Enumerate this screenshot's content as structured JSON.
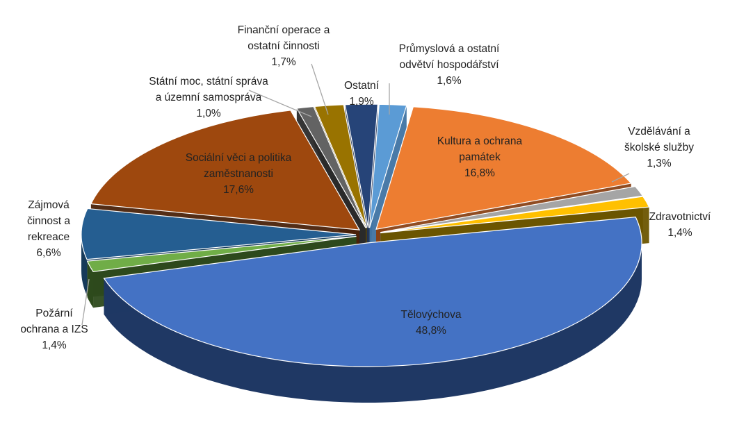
{
  "chart_data": {
    "type": "pie",
    "style": "3d-exploded",
    "title": "",
    "series": [
      {
        "label": [
          "Průmyslová a ostatní",
          "odvětví hospodářství"
        ],
        "pct": "1,6%",
        "value": 1.6,
        "color": "#5b9bd5",
        "side": "#3f73a3",
        "lightText": false
      },
      {
        "label": [
          "Kultura a ochrana",
          "památek"
        ],
        "pct": "16,8%",
        "value": 16.8,
        "color": "#ed7d31",
        "side": "#8a4216",
        "lightText": false
      },
      {
        "label": [
          "Vzdělávání a",
          "školské služby"
        ],
        "pct": "1,3%",
        "value": 1.3,
        "color": "#a5a5a5",
        "side": "#6e6e6e",
        "lightText": false
      },
      {
        "label": [
          "Zdravotnictví"
        ],
        "pct": "1,4%",
        "value": 1.4,
        "color": "#ffc000",
        "side": "#6b5500",
        "lightText": false
      },
      {
        "label": [
          "Tělovýchova"
        ],
        "pct": "48,8%",
        "value": 48.8,
        "color": "#4472c4",
        "side": "#1f3864",
        "lightText": false
      },
      {
        "label": [
          "Požární",
          "ochrana a IZS"
        ],
        "pct": "1,4%",
        "value": 1.4,
        "color": "#70ad47",
        "side": "#2d4a1c",
        "lightText": false
      },
      {
        "label": [
          "Zájmová",
          "činnost a",
          "rekreace"
        ],
        "pct": "6,6%",
        "value": 6.6,
        "color": "#255e91",
        "side": "#163a5a",
        "lightText": false
      },
      {
        "label": [
          "Sociální věci a politika",
          "zaměstnanosti"
        ],
        "pct": "17,6%",
        "value": 17.6,
        "color": "#9e480e",
        "side": "#4a220a",
        "lightText": false
      },
      {
        "label": [
          "Státní moc, státní správa",
          "a územní samospráva"
        ],
        "pct": "1,0%",
        "value": 1.0,
        "color": "#636363",
        "side": "#2a2a2a",
        "lightText": false
      },
      {
        "label": [
          "Finanční operace a",
          "ostatní činnosti"
        ],
        "pct": "1,7%",
        "value": 1.7,
        "color": "#997300",
        "side": "#5a4400",
        "lightText": false
      },
      {
        "label": [
          "Ostatní"
        ],
        "pct": "1,9%",
        "value": 1.9,
        "color": "#264478",
        "side": "#14264a",
        "lightText": false
      }
    ]
  }
}
